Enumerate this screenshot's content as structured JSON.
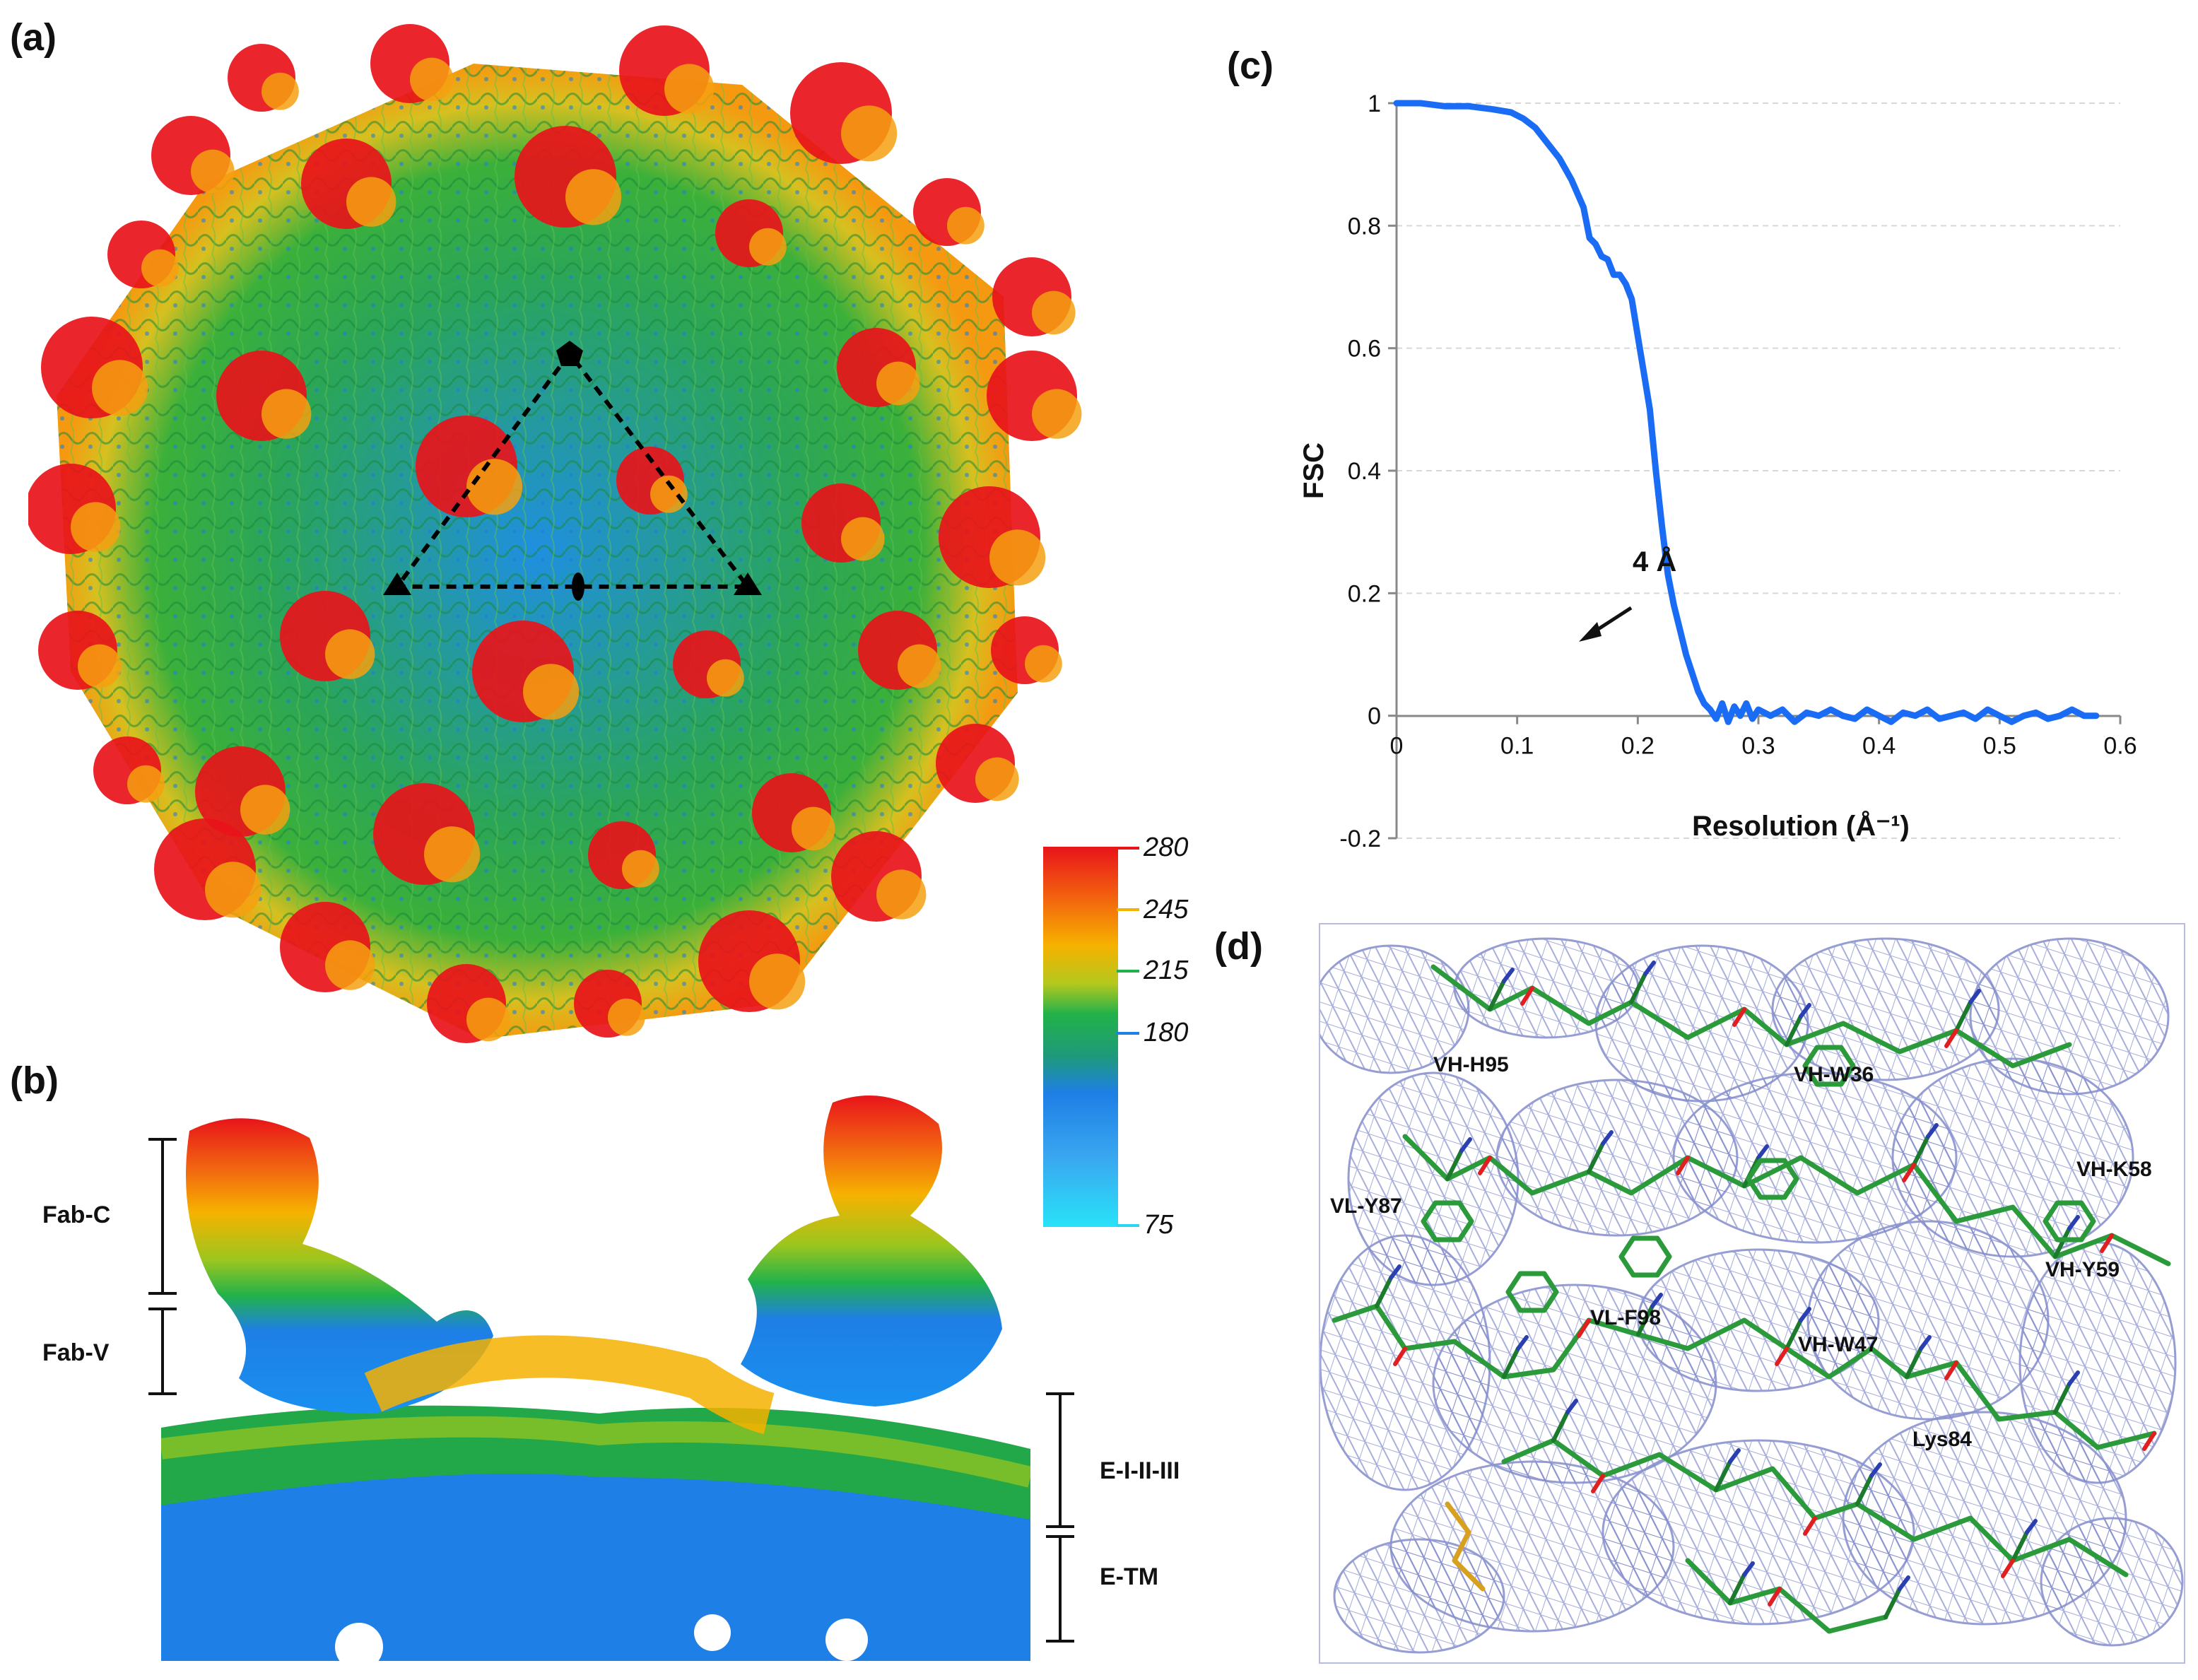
{
  "panels": {
    "a": {
      "letter": "(a)"
    },
    "b": {
      "letter": "(b)",
      "labels": {
        "fab_c": "Fab-C",
        "fab_v": "Fab-V",
        "e_123": "E-I-II-III",
        "e_tm": "E-TM"
      }
    },
    "c": {
      "letter": "(c)",
      "annotation": "4 Å"
    },
    "d": {
      "letter": "(d)",
      "residues": [
        "VH-H95",
        "VH-W36",
        "VH-K58",
        "VL-Y87",
        "VH-Y59",
        "VL-F98",
        "VH-W47",
        "Lys84"
      ]
    }
  },
  "colorbar": {
    "ticks": [
      "280",
      "245",
      "215",
      "180",
      "75"
    ],
    "tick_colors": [
      "#e8141a",
      "#f6b200",
      "#22b24a",
      "#1e7fe6",
      "#28d6f4"
    ]
  },
  "colors": {
    "curve": "#1a6cf5",
    "density_mesh": "#6d78c4",
    "stick_carbon": "#2a9a3a"
  },
  "chart_data": {
    "type": "line",
    "xlabel": "Resolution (Å⁻¹)",
    "ylabel": "FSC",
    "xlim": [
      0,
      0.6
    ],
    "ylim": [
      -0.2,
      1
    ],
    "x_ticks": [
      "0",
      "0.1",
      "0.2",
      "0.3",
      "0.4",
      "0.5",
      "0.6"
    ],
    "y_ticks": [
      "1",
      "0.8",
      "0.6",
      "0.4",
      "0.2",
      "0",
      "-0.2"
    ],
    "grid": true,
    "series": [
      {
        "x": [
          0,
          0.02,
          0.04,
          0.06,
          0.08,
          0.095,
          0.105,
          0.115,
          0.125,
          0.135,
          0.145,
          0.155,
          0.16,
          0.165,
          0.17,
          0.175,
          0.18,
          0.185,
          0.19,
          0.195,
          0.2,
          0.205,
          0.21,
          0.215,
          0.22,
          0.225,
          0.23,
          0.235,
          0.24,
          0.245,
          0.25,
          0.255,
          0.26,
          0.265,
          0.27,
          0.275,
          0.28,
          0.285,
          0.29,
          0.295,
          0.3,
          0.31,
          0.32,
          0.33,
          0.34,
          0.35,
          0.36,
          0.37,
          0.38,
          0.39,
          0.4,
          0.41,
          0.42,
          0.43,
          0.44,
          0.45,
          0.46,
          0.47,
          0.48,
          0.49,
          0.5,
          0.51,
          0.52,
          0.53,
          0.54,
          0.55,
          0.56,
          0.57,
          0.58
        ],
        "y": [
          1,
          1,
          0.995,
          0.995,
          0.99,
          0.985,
          0.975,
          0.96,
          0.935,
          0.91,
          0.875,
          0.83,
          0.78,
          0.77,
          0.75,
          0.745,
          0.72,
          0.72,
          0.705,
          0.68,
          0.62,
          0.56,
          0.5,
          0.4,
          0.31,
          0.23,
          0.18,
          0.14,
          0.1,
          0.07,
          0.04,
          0.02,
          0.01,
          -0.005,
          0.02,
          -0.01,
          0.015,
          0.0,
          0.02,
          -0.005,
          0.01,
          0.0,
          0.01,
          -0.01,
          0.005,
          0.0,
          0.01,
          0.0,
          -0.005,
          0.01,
          0.0,
          -0.01,
          0.005,
          0.0,
          0.01,
          -0.005,
          0.0,
          0.005,
          -0.005,
          0.01,
          0.0,
          -0.01,
          0.0,
          0.005,
          -0.005,
          0.0,
          0.01,
          0.0,
          0.0
        ]
      }
    ],
    "annotations": [
      {
        "text": "4 Å",
        "x": 0.25,
        "y": 0.18
      }
    ]
  }
}
